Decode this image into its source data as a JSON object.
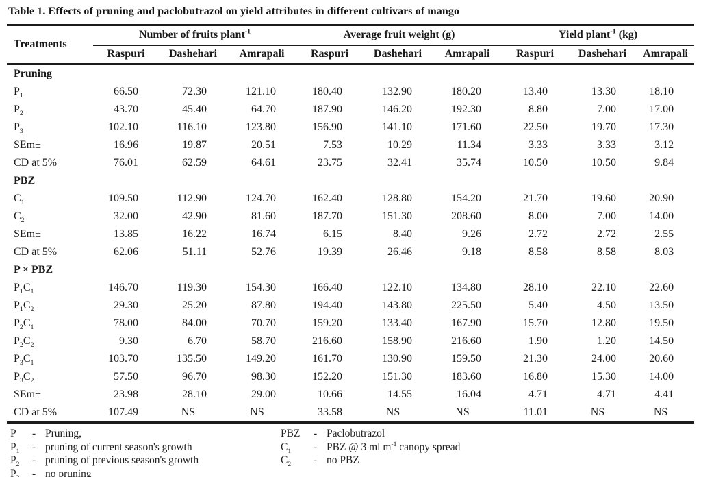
{
  "title": "Table 1. Effects of pruning and paclobutrazol on yield attributes in different cultivars of mango",
  "table": {
    "row_header": "Treatments",
    "groups": [
      "Number of fruits plant^-1",
      "Average fruit weight (g)",
      "Yield plant^-1 (kg)"
    ],
    "cultivars": [
      "Raspuri",
      "Dashehari",
      "Amrapali"
    ],
    "no_significance_marker": "NS",
    "sections": [
      {
        "header": "Pruning",
        "rows": [
          {
            "label": "P_1",
            "values": [
              "66.50",
              "72.30",
              "121.10",
              "180.40",
              "132.90",
              "180.20",
              "13.40",
              "13.30",
              "18.10"
            ]
          },
          {
            "label": "P_2",
            "values": [
              "43.70",
              "45.40",
              "64.70",
              "187.90",
              "146.20",
              "192.30",
              "8.80",
              "7.00",
              "17.00"
            ]
          },
          {
            "label": "P_3",
            "values": [
              "102.10",
              "116.10",
              "123.80",
              "156.90",
              "141.10",
              "171.60",
              "22.50",
              "19.70",
              "17.30"
            ]
          },
          {
            "label": "SEm±",
            "values": [
              "16.96",
              "19.87",
              "20.51",
              "7.53",
              "10.29",
              "11.34",
              "3.33",
              "3.33",
              "3.12"
            ]
          },
          {
            "label": "CD at 5%",
            "values": [
              "76.01",
              "62.59",
              "64.61",
              "23.75",
              "32.41",
              "35.74",
              "10.50",
              "10.50",
              "9.84"
            ]
          }
        ]
      },
      {
        "header": "PBZ",
        "rows": [
          {
            "label": "C_1",
            "values": [
              "109.50",
              "112.90",
              "124.70",
              "162.40",
              "128.80",
              "154.20",
              "21.70",
              "19.60",
              "20.90"
            ]
          },
          {
            "label": "C_2",
            "values": [
              "32.00",
              "42.90",
              "81.60",
              "187.70",
              "151.30",
              "208.60",
              "8.00",
              "7.00",
              "14.00"
            ]
          },
          {
            "label": "SEm±",
            "values": [
              "13.85",
              "16.22",
              "16.74",
              "6.15",
              "8.40",
              "9.26",
              "2.72",
              "2.72",
              "2.55"
            ]
          },
          {
            "label": "CD at 5%",
            "values": [
              "62.06",
              "51.11",
              "52.76",
              "19.39",
              "26.46",
              "9.18",
              "8.58",
              "8.58",
              "8.03"
            ]
          }
        ]
      },
      {
        "header": "P × PBZ",
        "rows": [
          {
            "label": "P_1C_1",
            "values": [
              "146.70",
              "119.30",
              "154.30",
              "166.40",
              "122.10",
              "134.80",
              "28.10",
              "22.10",
              "22.60"
            ]
          },
          {
            "label": "P_1C_2",
            "values": [
              "29.30",
              "25.20",
              "87.80",
              "194.40",
              "143.80",
              "225.50",
              "5.40",
              "4.50",
              "13.50"
            ]
          },
          {
            "label": "P_2C_1",
            "values": [
              "78.00",
              "84.00",
              "70.70",
              "159.20",
              "133.40",
              "167.90",
              "15.70",
              "12.80",
              "19.50"
            ]
          },
          {
            "label": "P_2C_2",
            "values": [
              "9.30",
              "6.70",
              "58.70",
              "216.60",
              "158.90",
              "216.60",
              "1.90",
              "1.20",
              "14.50"
            ]
          },
          {
            "label": "P_3C_1",
            "values": [
              "103.70",
              "135.50",
              "149.20",
              "161.70",
              "130.90",
              "159.50",
              "21.30",
              "24.00",
              "20.60"
            ]
          },
          {
            "label": "P_3C_2",
            "values": [
              "57.50",
              "96.70",
              "98.30",
              "152.20",
              "151.30",
              "183.60",
              "16.80",
              "15.30",
              "14.00"
            ]
          },
          {
            "label": "SEm±",
            "values": [
              "23.98",
              "28.10",
              "29.00",
              "10.66",
              "14.55",
              "16.04",
              "4.71",
              "4.71",
              "4.41"
            ]
          },
          {
            "label": "CD at 5%",
            "values": [
              "107.49",
              "NS",
              "NS",
              "33.58",
              "NS",
              "NS",
              "11.01",
              "NS",
              "NS"
            ]
          }
        ]
      }
    ]
  },
  "footnotes": {
    "dash": "-",
    "left": [
      {
        "label": "P",
        "text": "Pruning,"
      },
      {
        "label": "P_1",
        "text": "pruning of current season's growth"
      },
      {
        "label": "P_2",
        "text": "pruning of previous season's growth"
      },
      {
        "label": "P_3",
        "text": "no pruning"
      }
    ],
    "right": [
      {
        "label": "PBZ",
        "text": "Paclobutrazol"
      },
      {
        "label": "C_1",
        "text": "PBZ @ 3 ml m^-1 canopy spread"
      },
      {
        "label": "C_2",
        "text": "no PBZ"
      }
    ]
  },
  "colors": {
    "text": "#1a1a1a",
    "rule": "#1c1c1c",
    "background": "#ffffff"
  }
}
